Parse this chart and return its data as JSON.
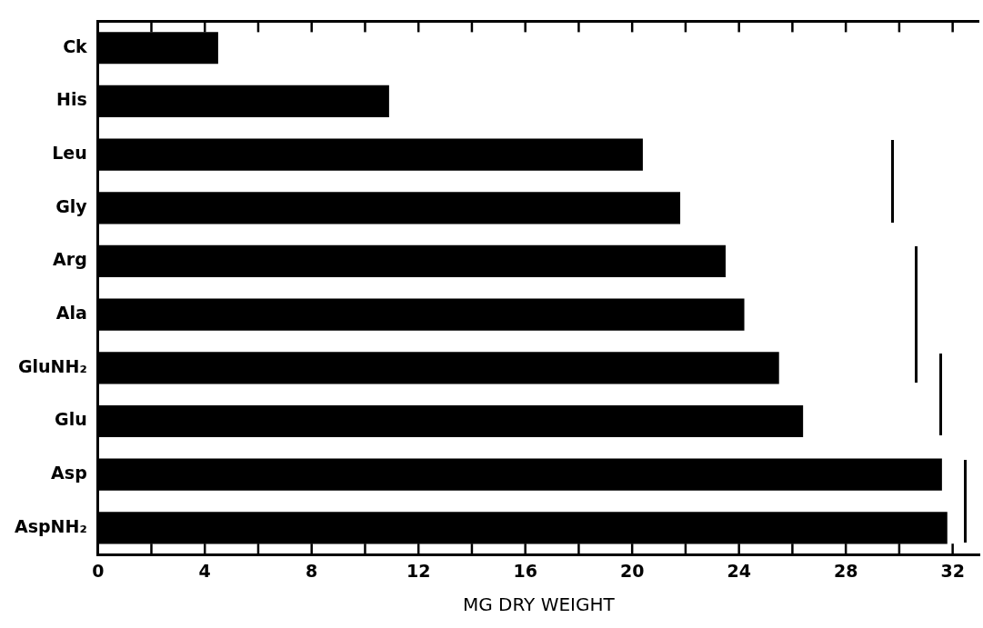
{
  "chart_data": {
    "type": "bar",
    "orientation": "horizontal",
    "xlabel": "MG DRY WEIGHT",
    "categories": [
      "Ck",
      "His",
      "Leu",
      "Gly",
      "Arg",
      "Ala",
      "GluNH₂",
      "Glu",
      "Asp",
      "AspNH₂"
    ],
    "values": [
      4.5,
      10.9,
      20.4,
      21.8,
      23.5,
      24.2,
      25.5,
      26.4,
      31.6,
      31.8
    ],
    "color": "#000000",
    "xlim": [
      0,
      33
    ],
    "xticks": [
      0,
      {
        "value": 2,
        "label": null
      },
      4,
      {
        "value": 6,
        "label": null
      },
      8,
      {
        "value": 10,
        "label": null
      },
      12,
      {
        "value": 14,
        "label": null
      },
      16,
      {
        "value": 18,
        "label": null
      },
      20,
      {
        "value": 22,
        "label": null
      },
      24,
      {
        "value": 26,
        "label": null
      },
      28,
      {
        "value": 30,
        "label": null
      },
      32
    ],
    "grid": false,
    "legend": false
  }
}
